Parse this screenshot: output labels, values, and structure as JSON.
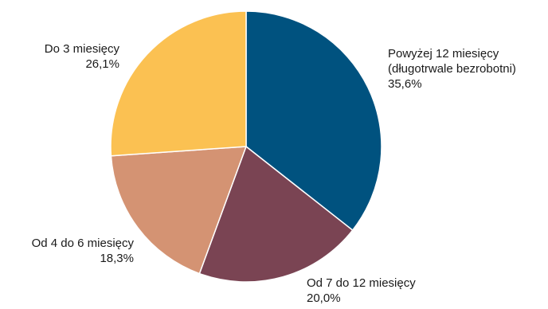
{
  "chart_data": {
    "type": "pie",
    "title": "",
    "start_angle_deg": 0,
    "direction": "clockwise",
    "slices": [
      {
        "label_lines": [
          "Powyżej 12 miesięcy",
          "(długotrwale bezrobotni)"
        ],
        "value": 35.6,
        "value_label": "35,6%",
        "color": "#00527f"
      },
      {
        "label_lines": [
          "Od 7 do 12 miesięcy"
        ],
        "value": 20.0,
        "value_label": "20,0%",
        "color": "#7a4453"
      },
      {
        "label_lines": [
          "Od 4 do 6 miesięcy"
        ],
        "value": 18.3,
        "value_label": "18,3%",
        "color": "#d49373"
      },
      {
        "label_lines": [
          "Do 3 miesięcy"
        ],
        "value": 26.1,
        "value_label": "26,1%",
        "color": "#fbc152"
      }
    ]
  }
}
